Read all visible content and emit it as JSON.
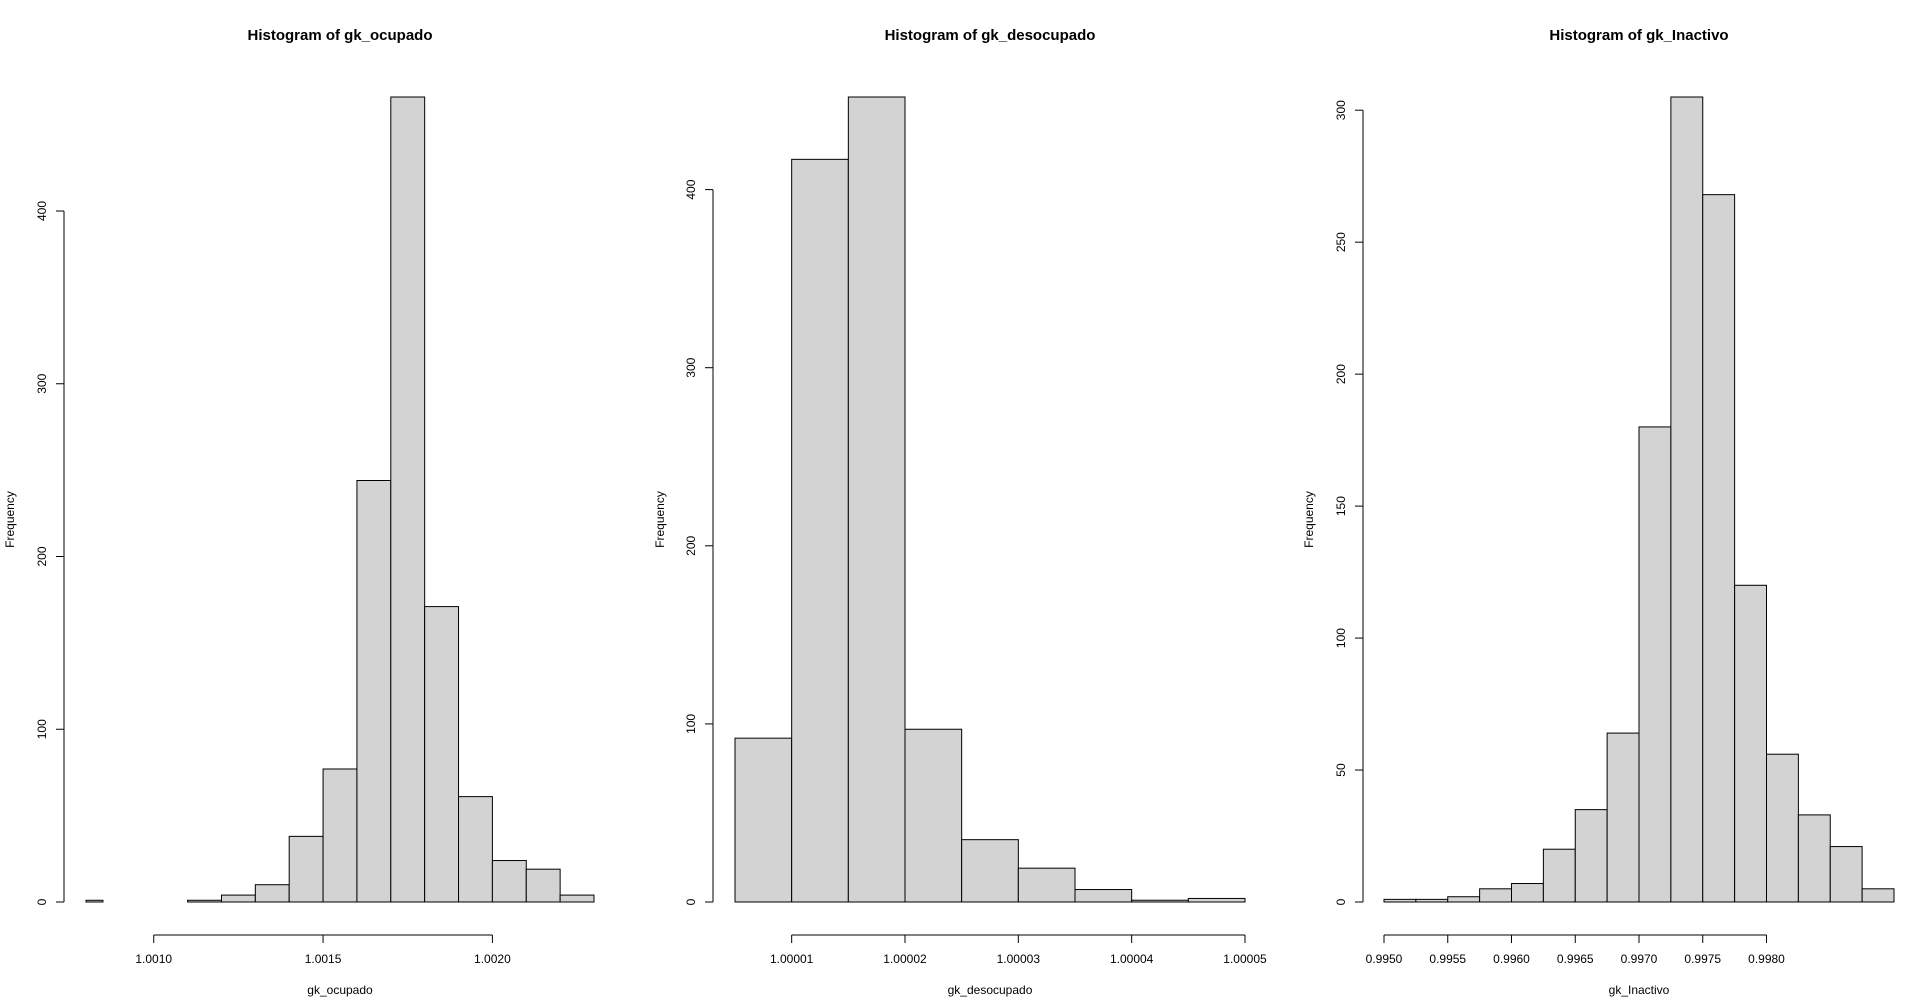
{
  "chart_data": [
    {
      "type": "bar",
      "title": "Histogram of gk_ocupado",
      "xlabel": "gk_ocupado",
      "ylabel": "Frequency",
      "bar_color": "#d3d3d3",
      "bins": [
        {
          "lo": 1.0008,
          "hi": 1.00085,
          "count": 1
        },
        {
          "lo": 1.00085,
          "hi": 1.0009,
          "count": 0
        },
        {
          "lo": 1.0009,
          "hi": 1.00095,
          "count": 0
        },
        {
          "lo": 1.00095,
          "hi": 1.001,
          "count": 0
        },
        {
          "lo": 1.001,
          "hi": 1.00105,
          "count": 0
        },
        {
          "lo": 1.00105,
          "hi": 1.0011,
          "count": 0
        },
        {
          "lo": 1.0011,
          "hi": 1.00115,
          "count": 1
        },
        {
          "lo": 1.00115,
          "hi": 1.0012,
          "count": 1
        },
        {
          "lo": 1.0012,
          "hi": 1.00125,
          "count": 4
        },
        {
          "lo": 1.00125,
          "hi": 1.0013,
          "count": 4
        },
        {
          "lo": 1.0013,
          "hi": 1.00135,
          "count": 10
        },
        {
          "lo": 1.00135,
          "hi": 1.0014,
          "count": 10
        },
        {
          "lo": 1.0014,
          "hi": 1.00145,
          "count": 38
        },
        {
          "lo": 1.00145,
          "hi": 1.0015,
          "count": 38
        },
        {
          "lo": 1.0015,
          "hi": 1.00155,
          "count": 77
        },
        {
          "lo": 1.00155,
          "hi": 1.0016,
          "count": 77
        },
        {
          "lo": 1.0016,
          "hi": 1.00165,
          "count": 244
        },
        {
          "lo": 1.00165,
          "hi": 1.0017,
          "count": 244
        },
        {
          "lo": 1.0017,
          "hi": 1.00175,
          "count": 466
        },
        {
          "lo": 1.00175,
          "hi": 1.0018,
          "count": 466
        },
        {
          "lo": 1.0018,
          "hi": 1.00185,
          "count": 171
        },
        {
          "lo": 1.00185,
          "hi": 1.0019,
          "count": 171
        },
        {
          "lo": 1.0019,
          "hi": 1.00195,
          "count": 61
        },
        {
          "lo": 1.00195,
          "hi": 1.002,
          "count": 61
        },
        {
          "lo": 1.002,
          "hi": 1.00205,
          "count": 24
        },
        {
          "lo": 1.00205,
          "hi": 1.0021,
          "count": 24
        },
        {
          "lo": 1.0021,
          "hi": 1.00215,
          "count": 19
        },
        {
          "lo": 1.00215,
          "hi": 1.0022,
          "count": 19
        },
        {
          "lo": 1.0022,
          "hi": 1.00225,
          "count": 4
        },
        {
          "lo": 1.00225,
          "hi": 1.0023,
          "count": 4
        }
      ],
      "xlim": [
        1.0008,
        1.0023
      ],
      "ylim": [
        0,
        466
      ],
      "x_ticks": [
        1.001,
        1.0015,
        1.002
      ],
      "x_tick_labels": [
        "1.0010",
        "1.0015",
        "1.0020"
      ],
      "y_ticks": [
        0,
        100,
        200,
        300,
        400
      ],
      "y_tick_labels": [
        "0",
        "100",
        "200",
        "300",
        "400"
      ]
    },
    {
      "type": "bar",
      "title": "Histogram of gk_desocupado",
      "xlabel": "gk_desocupado",
      "ylabel": "Frequency",
      "bar_color": "#d3d3d3",
      "bins": [
        {
          "lo": 1.000005,
          "hi": 1.00001,
          "count": 92
        },
        {
          "lo": 1.00001,
          "hi": 1.000015,
          "count": 417
        },
        {
          "lo": 1.000015,
          "hi": 1.00002,
          "count": 452
        },
        {
          "lo": 1.00002,
          "hi": 1.000025,
          "count": 97
        },
        {
          "lo": 1.000025,
          "hi": 1.00003,
          "count": 35
        },
        {
          "lo": 1.00003,
          "hi": 1.000035,
          "count": 19
        },
        {
          "lo": 1.000035,
          "hi": 1.00004,
          "count": 7
        },
        {
          "lo": 1.00004,
          "hi": 1.000045,
          "count": 1
        },
        {
          "lo": 1.000045,
          "hi": 1.00005,
          "count": 2
        }
      ],
      "xlim": [
        1.000005,
        1.00005
      ],
      "ylim": [
        0,
        452
      ],
      "x_ticks": [
        1.00001,
        1.00002,
        1.00003,
        1.00004,
        1.00005
      ],
      "x_tick_labels": [
        "1.00001",
        "1.00002",
        "1.00003",
        "1.00004",
        "1.00005"
      ],
      "y_ticks": [
        0,
        100,
        200,
        300,
        400
      ],
      "y_tick_labels": [
        "0",
        "100",
        "200",
        "300",
        "400"
      ]
    },
    {
      "type": "bar",
      "title": "Histogram of gk_Inactivo",
      "xlabel": "gk_Inactivo",
      "ylabel": "Frequency",
      "bar_color": "#d3d3d3",
      "bins": [
        {
          "lo": 0.995,
          "hi": 0.99525,
          "count": 1
        },
        {
          "lo": 0.99525,
          "hi": 0.9955,
          "count": 1
        },
        {
          "lo": 0.9955,
          "hi": 0.99575,
          "count": 2
        },
        {
          "lo": 0.99575,
          "hi": 0.996,
          "count": 5
        },
        {
          "lo": 0.996,
          "hi": 0.99625,
          "count": 7
        },
        {
          "lo": 0.99625,
          "hi": 0.9965,
          "count": 20
        },
        {
          "lo": 0.9965,
          "hi": 0.99675,
          "count": 35
        },
        {
          "lo": 0.99675,
          "hi": 0.997,
          "count": 64
        },
        {
          "lo": 0.997,
          "hi": 0.99725,
          "count": 180
        },
        {
          "lo": 0.99725,
          "hi": 0.9975,
          "count": 305
        },
        {
          "lo": 0.9975,
          "hi": 0.99775,
          "count": 268
        },
        {
          "lo": 0.99775,
          "hi": 0.998,
          "count": 120
        },
        {
          "lo": 0.998,
          "hi": 0.99825,
          "count": 56
        },
        {
          "lo": 0.99825,
          "hi": 0.9985,
          "count": 33
        },
        {
          "lo": 0.9985,
          "hi": 0.99875,
          "count": 21
        },
        {
          "lo": 0.99875,
          "hi": 0.999,
          "count": 5
        }
      ],
      "xlim": [
        0.995,
        0.999
      ],
      "ylim": [
        0,
        305
      ],
      "x_ticks": [
        0.995,
        0.9955,
        0.996,
        0.9965,
        0.997,
        0.9975,
        0.998
      ],
      "x_tick_labels": [
        "0.9950",
        "0.9955",
        "0.9960",
        "0.9965",
        "0.9970",
        "0.9975",
        "0.9980"
      ],
      "y_ticks": [
        0,
        50,
        100,
        150,
        200,
        250,
        300
      ],
      "y_tick_labels": [
        "0",
        "50",
        "100",
        "150",
        "200",
        "250",
        "300"
      ]
    }
  ]
}
